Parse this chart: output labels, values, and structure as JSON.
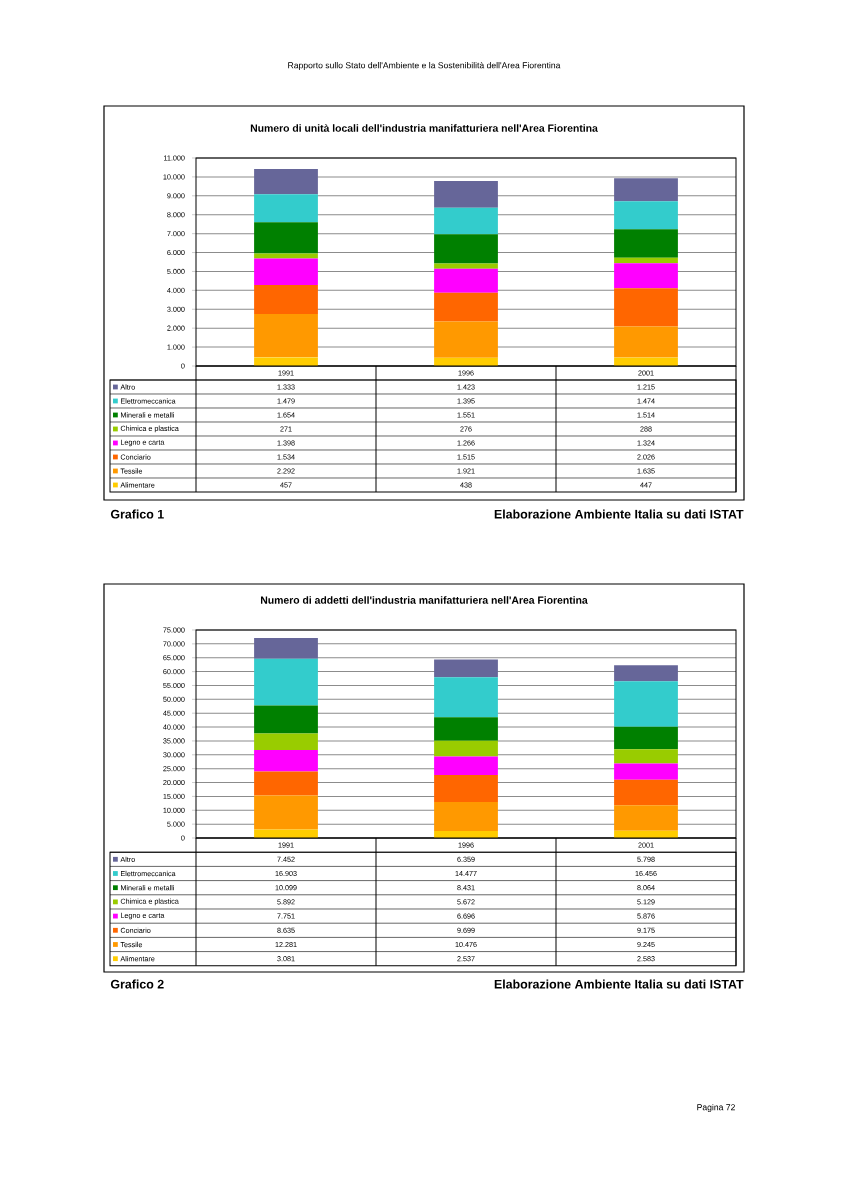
{
  "chart_data": [
    {
      "type": "bar",
      "title": "Numero di unità locali dell'industria manifatturiera nell'Area Fiorentina",
      "categories": [
        "1991",
        "1996",
        "2001"
      ],
      "stacked": true,
      "grid": "y",
      "legend": "bottom",
      "ylim": [
        0,
        11000
      ],
      "yticks": [
        0,
        {
          "value": 1000,
          "label": "1.000"
        },
        {
          "value": 2000,
          "label": "2.000"
        },
        {
          "value": 3000,
          "label": "3.000"
        },
        {
          "value": 4000,
          "label": "4.000"
        },
        {
          "value": 5000,
          "label": "5.000"
        },
        {
          "value": 6000,
          "label": "6.000"
        },
        {
          "value": 7000,
          "label": "7.000"
        },
        {
          "value": 8000,
          "label": "8.000"
        },
        {
          "value": 9000,
          "label": "9.000"
        },
        {
          "value": 10000,
          "label": "10.000"
        },
        {
          "value": 11000,
          "label": "11.000"
        }
      ],
      "series": [
        {
          "name": "Alimentare",
          "color": "#ffcc00",
          "values": [
            457,
            438,
            447
          ],
          "value_labels": [
            "457",
            "438",
            "447"
          ]
        },
        {
          "name": "Tessile",
          "color": "#ff9900",
          "values": [
            2292,
            1921,
            1635
          ],
          "value_labels": [
            "2.292",
            "1.921",
            "1.635"
          ]
        },
        {
          "name": "Conciario",
          "color": "#ff6600",
          "values": [
            1534,
            1515,
            2026
          ],
          "value_labels": [
            "1.534",
            "1.515",
            "2.026"
          ]
        },
        {
          "name": "Legno e carta",
          "color": "#ff00ff",
          "values": [
            1398,
            1266,
            1324
          ],
          "value_labels": [
            "1.398",
            "1.266",
            "1.324"
          ]
        },
        {
          "name": "Chimica e plastica",
          "color": "#99cc00",
          "values": [
            271,
            276,
            288
          ],
          "value_labels": [
            "271",
            "276",
            "288"
          ]
        },
        {
          "name": "Minerali e metalli",
          "color": "#008000",
          "values": [
            1654,
            1551,
            1514
          ],
          "value_labels": [
            "1.654",
            "1.551",
            "1.514"
          ]
        },
        {
          "name": "Elettromeccanica",
          "color": "#33cccc",
          "values": [
            1479,
            1395,
            1474
          ],
          "value_labels": [
            "1.479",
            "1.395",
            "1.474"
          ]
        },
        {
          "name": "Altro",
          "color": "#666699",
          "values": [
            1333,
            1423,
            1215
          ],
          "value_labels": [
            "1.333",
            "1.423",
            "1.215"
          ]
        }
      ],
      "annotations": [
        "Rapporto sullo Stato dell'Ambiente e la Sostenibilità dell'Area Fiorentina",
        "Grafico 1",
        "Elaborazione Ambiente Italia su dati ISTAT"
      ]
    },
    {
      "type": "bar",
      "title": "Numero di addetti dell'industria manifatturiera nell'Area Fiorentina",
      "categories": [
        "1991",
        "1996",
        "2001"
      ],
      "stacked": true,
      "grid": "y",
      "legend": "bottom",
      "ylim": [
        0,
        75000
      ],
      "yticks": [
        0,
        {
          "value": 5000,
          "label": "5.000"
        },
        {
          "value": 10000,
          "label": "10.000"
        },
        {
          "value": 15000,
          "label": "15.000"
        },
        {
          "value": 20000,
          "label": "20.000"
        },
        {
          "value": 25000,
          "label": "25.000"
        },
        {
          "value": 30000,
          "label": "30.000"
        },
        {
          "value": 35000,
          "label": "35.000"
        },
        {
          "value": 40000,
          "label": "40.000"
        },
        {
          "value": 45000,
          "label": "45.000"
        },
        {
          "value": 50000,
          "label": "50.000"
        },
        {
          "value": 55000,
          "label": "55.000"
        },
        {
          "value": 60000,
          "label": "60.000"
        },
        {
          "value": 65000,
          "label": "65.000"
        },
        {
          "value": 70000,
          "label": "70.000"
        },
        {
          "value": 75000,
          "label": "75.000"
        }
      ],
      "series": [
        {
          "name": "Alimentare",
          "color": "#ffcc00",
          "values": [
            3081,
            2537,
            2583
          ],
          "value_labels": [
            "3.081",
            "2.537",
            "2.583"
          ]
        },
        {
          "name": "Tessile",
          "color": "#ff9900",
          "values": [
            12281,
            10476,
            9245
          ],
          "value_labels": [
            "12.281",
            "10.476",
            "9.245"
          ]
        },
        {
          "name": "Conciario",
          "color": "#ff6600",
          "values": [
            8635,
            9699,
            9175
          ],
          "value_labels": [
            "8.635",
            "9.699",
            "9.175"
          ]
        },
        {
          "name": "Legno e carta",
          "color": "#ff00ff",
          "values": [
            7751,
            6696,
            5876
          ],
          "value_labels": [
            "7.751",
            "6.696",
            "5.876"
          ]
        },
        {
          "name": "Chimica e plastica",
          "color": "#99cc00",
          "values": [
            5892,
            5672,
            5129
          ],
          "value_labels": [
            "5.892",
            "5.672",
            "5.129"
          ]
        },
        {
          "name": "Minerali e metalli",
          "color": "#008000",
          "values": [
            10099,
            8431,
            8064
          ],
          "value_labels": [
            "10.099",
            "8.431",
            "8.064"
          ]
        },
        {
          "name": "Elettromeccanica",
          "color": "#33cccc",
          "values": [
            16903,
            14477,
            16456
          ],
          "value_labels": [
            "16.903",
            "14.477",
            "16.456"
          ]
        },
        {
          "name": "Altro",
          "color": "#666699",
          "values": [
            7452,
            6359,
            5798
          ],
          "value_labels": [
            "7.452",
            "6.359",
            "5.798"
          ]
        }
      ],
      "annotations": [
        "Grafico 2",
        "Elaborazione Ambiente Italia su dati ISTAT",
        "Pagina 72"
      ]
    }
  ]
}
